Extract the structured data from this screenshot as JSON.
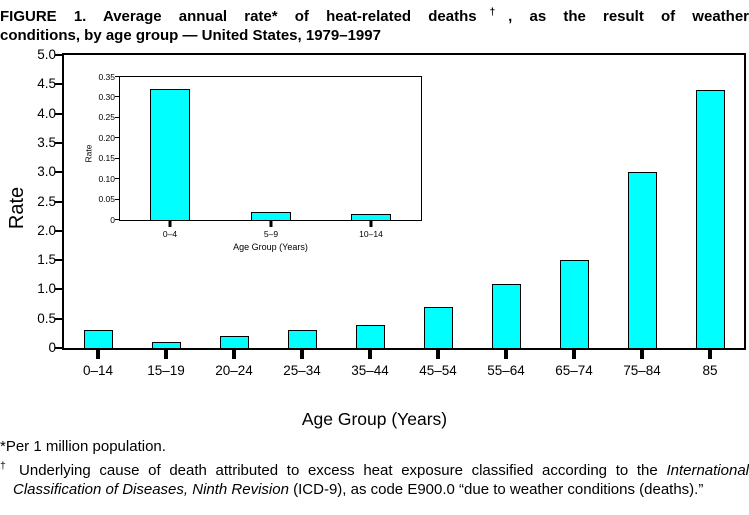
{
  "title": {
    "line1_pre": "FIGURE 1. Average annual rate* of heat-related deaths",
    "line1_sup": "†",
    "line1_post": ", as the result of weather",
    "line2": "conditions, by age group — United States, 1979–1997"
  },
  "footnotes": {
    "star": "*Per 1 million population.",
    "dagger_marker": "†",
    "dagger_text_before_italic": " Underlying cause of death attributed to excess heat exposure classified according to the ",
    "dagger_italic": "International Classification of Diseases, Ninth Revision",
    "dagger_text_after_italic": " (ICD-9), as code E900.0 “due to weather conditions (deaths).”"
  },
  "colors": {
    "bar_fill": "#00FFFF",
    "bar_outline": "#000000",
    "axis": "#000000",
    "background": "#FFFFFF"
  },
  "chart_data": [
    {
      "type": "bar",
      "role": "main",
      "categories": [
        "0–14",
        "15–19",
        "20–24",
        "25–34",
        "35–44",
        "45–54",
        "55–64",
        "65–74",
        "75–84",
        "85"
      ],
      "values": [
        0.3,
        0.1,
        0.2,
        0.3,
        0.4,
        0.7,
        1.1,
        1.5,
        3.0,
        4.4
      ],
      "xlabel": "Age Group (Years)",
      "ylabel": "Rate",
      "ylim": [
        0,
        5
      ],
      "yticks": [
        {
          "value": 0,
          "label": "0"
        },
        {
          "value": 0.5,
          "label": "0.5"
        },
        {
          "value": 1,
          "label": "1.0"
        },
        {
          "value": 1.5,
          "label": "1.5"
        },
        {
          "value": 2,
          "label": "2.0"
        },
        {
          "value": 2.5,
          "label": "2.5"
        },
        {
          "value": 3,
          "label": "3.0"
        },
        {
          "value": 3.5,
          "label": "3.5"
        },
        {
          "value": 4,
          "label": "4.0"
        },
        {
          "value": 4.5,
          "label": "4.5"
        },
        {
          "value": 5,
          "label": "5.0"
        }
      ],
      "bar_color": "#00FFFF",
      "grid": false,
      "legend": "none"
    },
    {
      "type": "bar",
      "role": "inset",
      "categories": [
        "0–4",
        "5–9",
        "10–14"
      ],
      "values": [
        0.32,
        0.02,
        0.015
      ],
      "xlabel": "Age Group (Years)",
      "ylabel": "Rate",
      "ylim": [
        0,
        0.35
      ],
      "yticks": [
        {
          "value": 0,
          "label": "0"
        },
        {
          "value": 0.05,
          "label": "0.05"
        },
        {
          "value": 0.1,
          "label": "0.10"
        },
        {
          "value": 0.15,
          "label": "0.15"
        },
        {
          "value": 0.2,
          "label": "0.20"
        },
        {
          "value": 0.25,
          "label": "0.25"
        },
        {
          "value": 0.3,
          "label": "0.30"
        },
        {
          "value": 0.35,
          "label": "0.35"
        }
      ],
      "bar_color": "#00FFFF",
      "grid": false,
      "legend": "none"
    }
  ]
}
